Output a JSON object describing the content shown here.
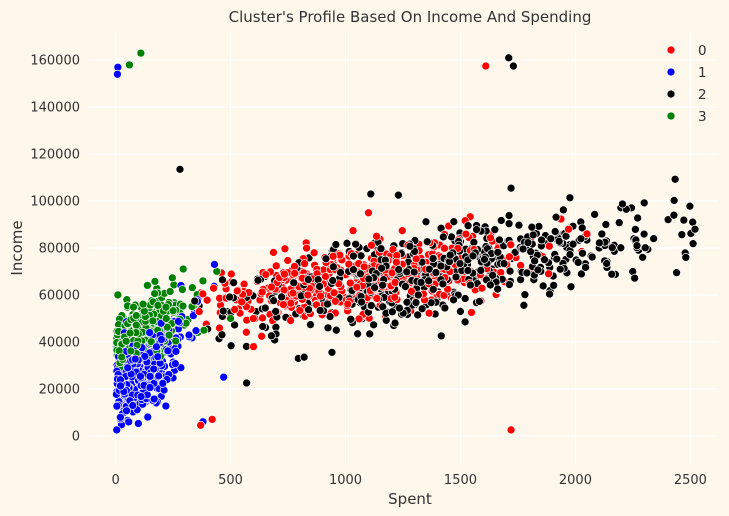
{
  "chart_data": {
    "type": "scatter",
    "title": "Cluster's Profile Based On Income And Spending",
    "xlabel": "Spent",
    "ylabel": "Income",
    "xlim": [
      -120,
      2620
    ],
    "ylim": [
      -12000,
      172000
    ],
    "xticks": [
      0,
      500,
      1000,
      1500,
      2000,
      2500
    ],
    "yticks": [
      0,
      20000,
      40000,
      60000,
      80000,
      100000,
      120000,
      140000,
      160000
    ],
    "grid": true,
    "legend_position": "top-right",
    "series": [
      {
        "name": "0",
        "color": "#FF0000",
        "generated": {
          "count": 470,
          "x_range": [
            330,
            2050
          ],
          "center_x": 1050,
          "x_spread": 380,
          "base": 52000,
          "slope": 14.0,
          "noise": 7500,
          "seed": 11
        },
        "points": [
          [
            1610,
            157500
          ],
          [
            1720,
            2500
          ],
          [
            370,
            4500
          ],
          [
            420,
            7000
          ],
          [
            2050,
            86000
          ],
          [
            1970,
            88000
          ],
          [
            1100,
            95000
          ],
          [
            600,
            38000
          ]
        ]
      },
      {
        "name": "1",
        "color": "#0000FF",
        "generated": {
          "count": 430,
          "x_range": [
            3,
            460
          ],
          "center_x": 90,
          "x_spread": 110,
          "base": 20000,
          "slope": 80.0,
          "noise": 9000,
          "seed": 23
        },
        "points": [
          [
            10,
            157000
          ],
          [
            8,
            154000
          ],
          [
            380,
            6000
          ],
          [
            430,
            73000
          ],
          [
            470,
            25000
          ],
          [
            5,
            2500
          ],
          [
            140,
            8000
          ]
        ]
      },
      {
        "name": "2",
        "color": "#000000",
        "generated": {
          "count": 560,
          "x_range": [
            300,
            2520
          ],
          "center_x": 1450,
          "x_spread": 460,
          "base": 45000,
          "slope": 18.0,
          "noise": 9000,
          "seed": 37
        },
        "points": [
          [
            1710,
            161000
          ],
          [
            1730,
            157500
          ],
          [
            280,
            113500
          ],
          [
            1110,
            103000
          ],
          [
            1230,
            102500
          ],
          [
            1720,
            105500
          ],
          [
            2510,
            91000
          ],
          [
            2520,
            88000
          ],
          [
            2440,
            69500
          ],
          [
            2480,
            76000
          ],
          [
            2340,
            84000
          ],
          [
            820,
            33500
          ],
          [
            570,
            22500
          ],
          [
            1520,
            48500
          ],
          [
            960,
            45000
          ]
        ]
      },
      {
        "name": "3",
        "color": "#008000",
        "generated": {
          "count": 420,
          "x_range": [
            5,
            420
          ],
          "center_x": 110,
          "x_spread": 100,
          "base": 38000,
          "slope": 50.0,
          "noise": 7000,
          "seed": 53
        },
        "points": [
          [
            110,
            163000
          ],
          [
            60,
            158000
          ],
          [
            380,
            66000
          ],
          [
            440,
            70000
          ],
          [
            10,
            60000
          ],
          [
            500,
            50000
          ]
        ]
      }
    ]
  }
}
